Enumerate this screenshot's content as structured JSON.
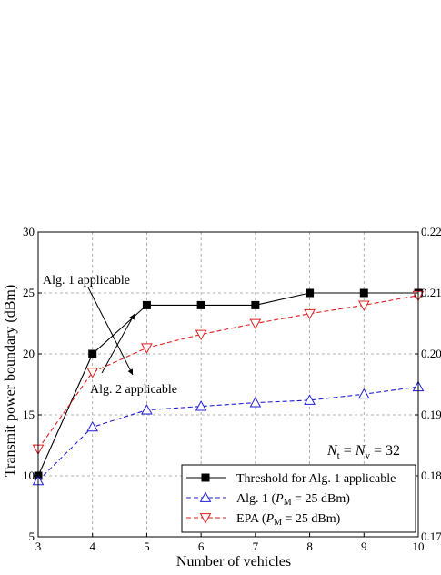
{
  "colors": {
    "threshold": "#000000",
    "alg1": "#1f1fd6",
    "epa": "#e01e1e",
    "grid": "#9a9a9a"
  },
  "chart_data": {
    "type": "line",
    "xlabel": "Number of vehicles",
    "ylabel": "Transmit power boundary (dBm)",
    "x": [
      3,
      4,
      5,
      6,
      7,
      8,
      9,
      10
    ],
    "xlim": [
      3,
      10
    ],
    "ylim": [
      5,
      30
    ],
    "x_ticks": [
      "3",
      "4",
      "5",
      "6",
      "7",
      "8",
      "9",
      "10"
    ],
    "y_ticks": [
      "5",
      "10",
      "15",
      "20",
      "25",
      "30"
    ],
    "right_ticks": [
      "0.17",
      "0.18",
      "0.19",
      "0.20",
      "0.21",
      "0.22"
    ],
    "right_tick_values": [
      5,
      10,
      15,
      20,
      25,
      30
    ],
    "grid": true,
    "legend_position": "bottom-right",
    "series": [
      {
        "name": "Threshold for Alg. 1 applicable",
        "marker": "square-filled",
        "line": "solid",
        "color": "#000000",
        "values": [
          10,
          20,
          24,
          24,
          24,
          25,
          25,
          25
        ]
      },
      {
        "name": "Alg. 1 (P_M = 25 dBm)",
        "marker": "triangle-up-open",
        "line": "dashed",
        "color": "#1f1fd6",
        "values": [
          9.6,
          14,
          15.4,
          15.7,
          16.0,
          16.2,
          16.7,
          17.3
        ]
      },
      {
        "name": "EPA (P_M = 25 dBm)",
        "marker": "triangle-down-open",
        "line": "dashed",
        "color": "#e01e1e",
        "values": [
          12.2,
          18.5,
          20.5,
          21.6,
          22.5,
          23.3,
          24.0,
          24.8
        ]
      }
    ],
    "legend": {
      "entries": [
        {
          "text": "Threshold for Alg. 1 applicable"
        },
        {
          "pre": "Alg. 1 (",
          "var": "P",
          "sub": "M",
          "post": " = 25 dBm)"
        },
        {
          "pre": "EPA (",
          "var": "P",
          "sub": "M",
          "post": " = 25 dBm)"
        }
      ]
    },
    "annotations": {
      "alg1_applicable": "Alg. 1 applicable",
      "alg2_applicable": "Alg. 2 applicable",
      "condition": {
        "a": "N",
        "a_sub": "t",
        "b": "N",
        "b_sub": "v",
        "value": "= 32"
      }
    }
  }
}
